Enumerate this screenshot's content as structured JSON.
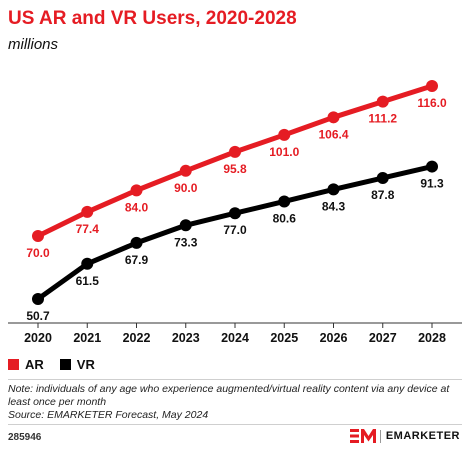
{
  "header": {
    "title": "US AR and VR Users, 2020-2028",
    "subtitle": "millions"
  },
  "colors": {
    "ar": "#e51c23",
    "vr": "#000000",
    "title": "#e51c23"
  },
  "legend": {
    "ar_label": "AR",
    "vr_label": "VR",
    "placement": "bottom-left"
  },
  "chart_data": {
    "type": "line",
    "title": "US AR and VR Users, 2020-2028",
    "subtitle": "millions",
    "x": [
      "2020",
      "2021",
      "2022",
      "2023",
      "2024",
      "2025",
      "2026",
      "2027",
      "2028"
    ],
    "series": [
      {
        "name": "AR",
        "values": [
          70.0,
          77.4,
          84.0,
          90.0,
          95.8,
          101.0,
          106.4,
          111.2,
          116.0
        ],
        "labels": [
          "70.0",
          "77.4",
          "84.0",
          "90.0",
          "95.8",
          "101.0",
          "106.4",
          "111.2",
          "116.0"
        ],
        "color": "#e51c23"
      },
      {
        "name": "VR",
        "values": [
          50.7,
          61.5,
          67.9,
          73.3,
          77.0,
          80.6,
          84.3,
          87.8,
          91.3
        ],
        "labels": [
          "50.7",
          "61.5",
          "67.9",
          "73.3",
          "77.0",
          "80.6",
          "84.3",
          "87.8",
          "91.3"
        ],
        "color": "#000000"
      }
    ],
    "grid": false,
    "legend": "bottom-left"
  },
  "footer": {
    "note": "Note: individuals of any age who experience augmented/virtual reality content via any device at least once per month",
    "source": "Source: EMARKETER Forecast, May 2024",
    "chart_id": "285946",
    "brand": "EMARKETER"
  }
}
